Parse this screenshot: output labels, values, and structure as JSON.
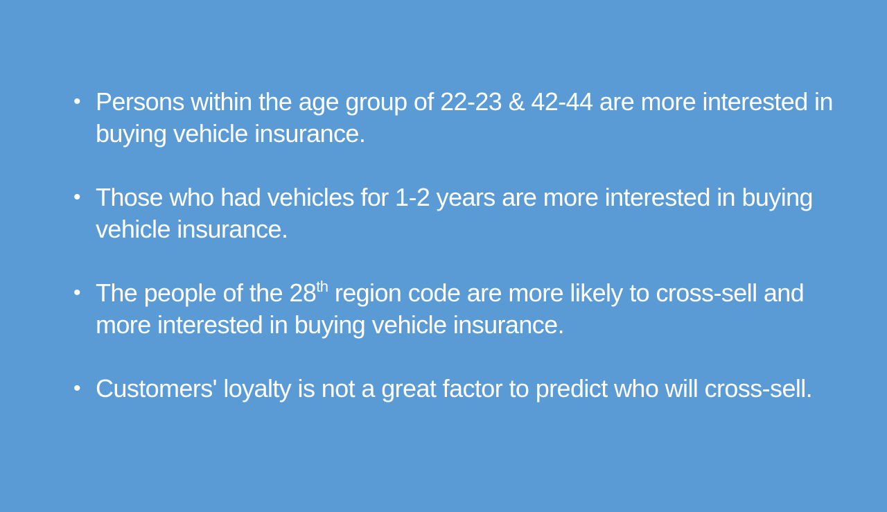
{
  "slide": {
    "background_color": "#5b9bd5",
    "text_color": "#ffffff",
    "bullet_symbol": "•",
    "bullets": [
      {
        "text": "Persons within the age group of 22-23 & 42-44 are more interested in buying vehicle insurance."
      },
      {
        "text": " Those who had vehicles for 1-2 years are more interested in buying vehicle insurance."
      },
      {
        "text_before": " The people of the 28",
        "superscript": "th",
        "text_after": " region code are more likely to cross-sell and more interested in buying vehicle insurance."
      },
      {
        "text": "Customers' loyalty is not a great factor to predict who will cross-sell."
      }
    ]
  }
}
